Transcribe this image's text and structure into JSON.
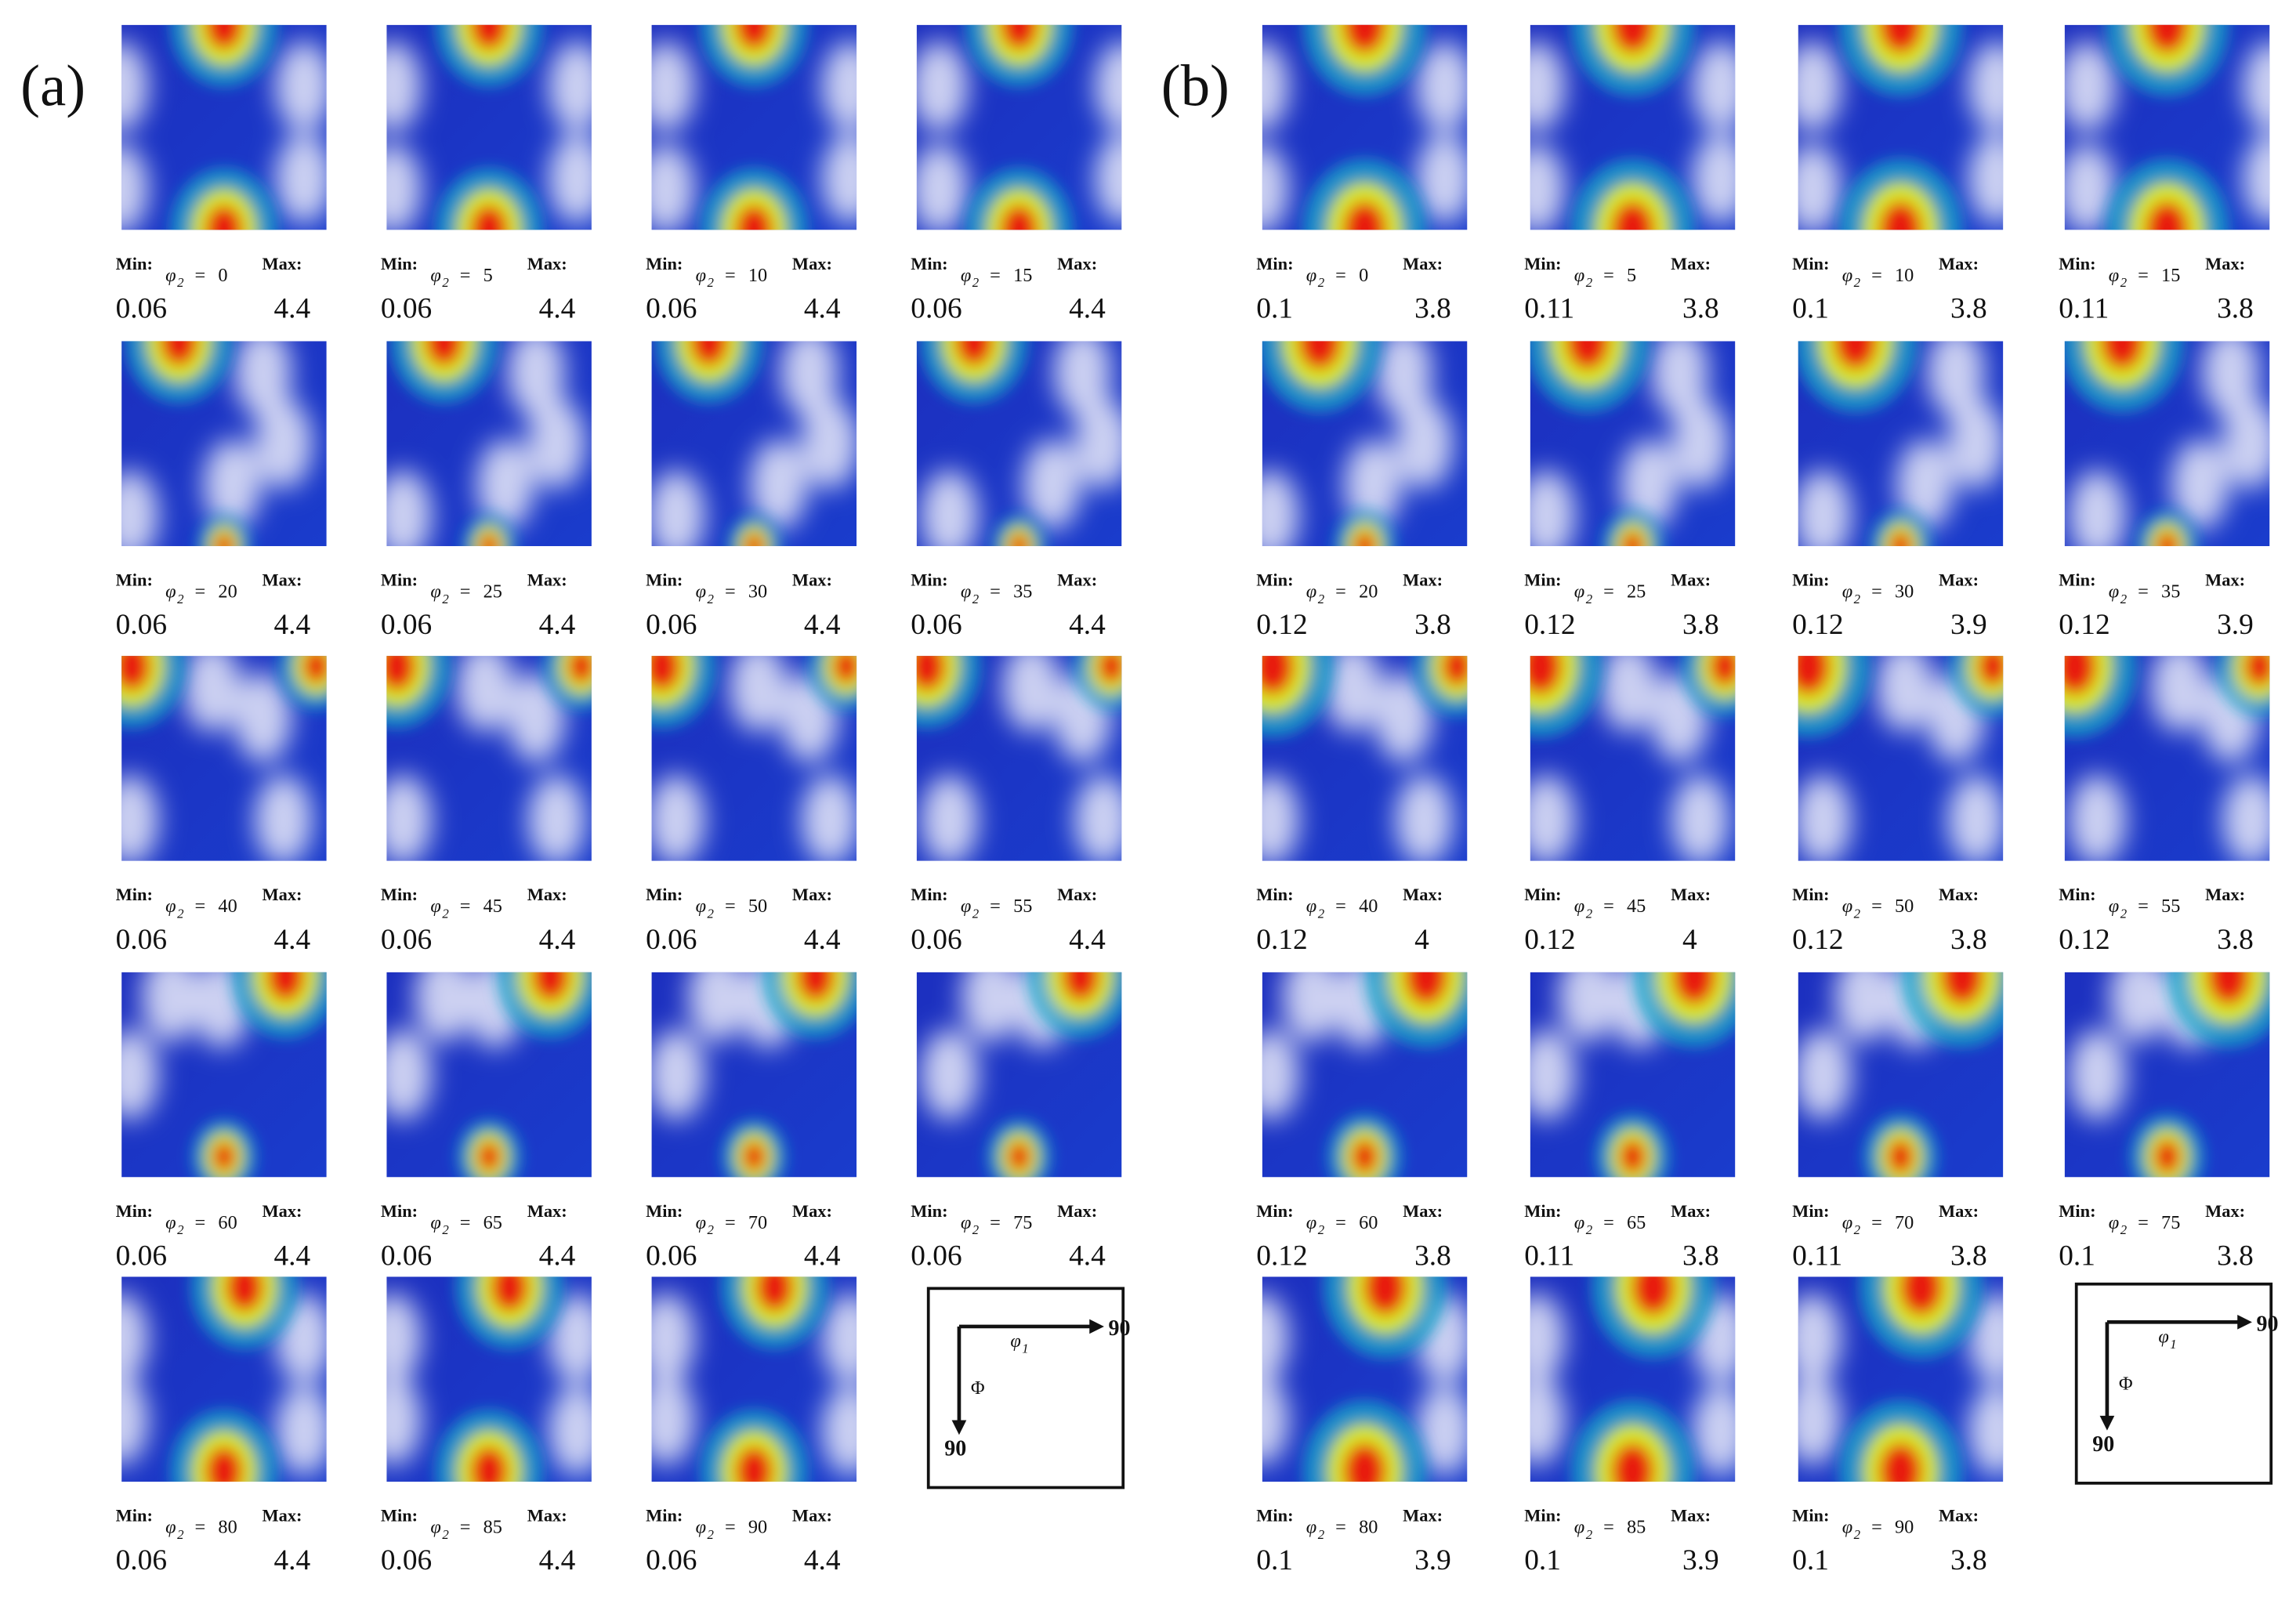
{
  "min_label": "Min:",
  "max_label": "Max:",
  "phi_symbol": "φ",
  "phi_sub": "2",
  "equals": "=",
  "key": {
    "x_symbol": "φ",
    "x_sub": "1",
    "y_symbol": "Φ",
    "end": "90"
  },
  "panels": [
    {
      "label": "(a)",
      "sections": [
        {
          "phi2": 0,
          "min": 0.06,
          "max": 4.4
        },
        {
          "phi2": 5,
          "min": 0.06,
          "max": 4.4
        },
        {
          "phi2": 10,
          "min": 0.06,
          "max": 4.4
        },
        {
          "phi2": 15,
          "min": 0.06,
          "max": 4.4
        },
        {
          "phi2": 20,
          "min": 0.06,
          "max": 4.4
        },
        {
          "phi2": 25,
          "min": 0.06,
          "max": 4.4
        },
        {
          "phi2": 30,
          "min": 0.06,
          "max": 4.4
        },
        {
          "phi2": 35,
          "min": 0.06,
          "max": 4.4
        },
        {
          "phi2": 40,
          "min": 0.06,
          "max": 4.4
        },
        {
          "phi2": 45,
          "min": 0.06,
          "max": 4.4
        },
        {
          "phi2": 50,
          "min": 0.06,
          "max": 4.4
        },
        {
          "phi2": 55,
          "min": 0.06,
          "max": 4.4
        },
        {
          "phi2": 60,
          "min": 0.06,
          "max": 4.4
        },
        {
          "phi2": 65,
          "min": 0.06,
          "max": 4.4
        },
        {
          "phi2": 70,
          "min": 0.06,
          "max": 4.4
        },
        {
          "phi2": 75,
          "min": 0.06,
          "max": 4.4
        },
        {
          "phi2": 80,
          "min": 0.06,
          "max": 4.4
        },
        {
          "phi2": 85,
          "min": 0.06,
          "max": 4.4
        },
        {
          "phi2": 90,
          "min": 0.06,
          "max": 4.4
        }
      ]
    },
    {
      "label": "(b)",
      "sections": [
        {
          "phi2": 0,
          "min": 0.1,
          "max": 3.8
        },
        {
          "phi2": 5,
          "min": 0.11,
          "max": 3.8
        },
        {
          "phi2": 10,
          "min": 0.1,
          "max": 3.8
        },
        {
          "phi2": 15,
          "min": 0.11,
          "max": 3.8
        },
        {
          "phi2": 20,
          "min": 0.12,
          "max": 3.8
        },
        {
          "phi2": 25,
          "min": 0.12,
          "max": 3.8
        },
        {
          "phi2": 30,
          "min": 0.12,
          "max": 3.9
        },
        {
          "phi2": 35,
          "min": 0.12,
          "max": 3.9
        },
        {
          "phi2": 40,
          "min": 0.12,
          "max": 4
        },
        {
          "phi2": 45,
          "min": 0.12,
          "max": 4
        },
        {
          "phi2": 50,
          "min": 0.12,
          "max": 3.8
        },
        {
          "phi2": 55,
          "min": 0.12,
          "max": 3.8
        },
        {
          "phi2": 60,
          "min": 0.12,
          "max": 3.8
        },
        {
          "phi2": 65,
          "min": 0.11,
          "max": 3.8
        },
        {
          "phi2": 70,
          "min": 0.11,
          "max": 3.8
        },
        {
          "phi2": 75,
          "min": 0.1,
          "max": 3.8
        },
        {
          "phi2": 80,
          "min": 0.1,
          "max": 3.9
        },
        {
          "phi2": 85,
          "min": 0.1,
          "max": 3.9
        },
        {
          "phi2": 90,
          "min": 0.1,
          "max": 3.8
        }
      ]
    }
  ]
}
